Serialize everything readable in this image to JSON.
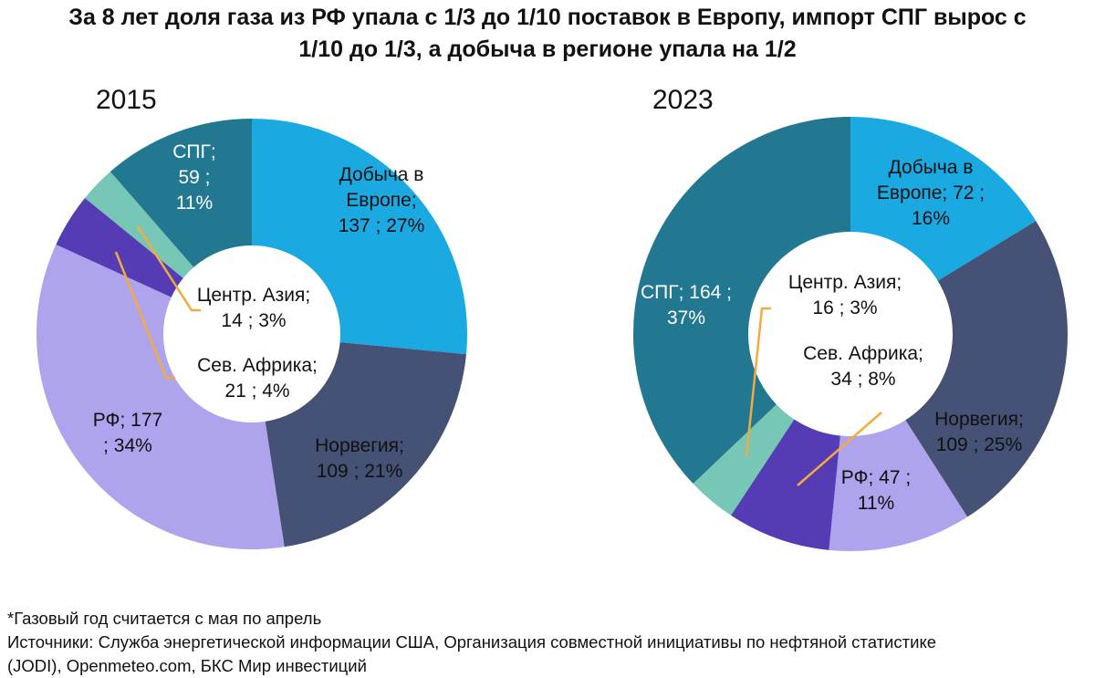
{
  "title": {
    "line1": "За 8 лет доля газа из РФ упала с 1/3 до 1/10 поставок в Европу, импорт СПГ вырос с",
    "line2": "1/10 до 1/3, а добыча в регионе упала на 1/2"
  },
  "colors": {
    "production": "#1ba9e1",
    "norway": "#465275",
    "russia": "#aea3ed",
    "north_africa": "#553cb4",
    "central_asia": "#76c7b5",
    "lng": "#237891",
    "leader": "#f0ac3c"
  },
  "chart_data": [
    {
      "type": "pie",
      "subtitle": "2015",
      "categories": [
        "Добыча в Европе",
        "Норвегия",
        "РФ",
        "Сев. Африка",
        "Центр. Азия",
        "СПГ"
      ],
      "values": [
        137,
        109,
        177,
        21,
        14,
        59
      ],
      "percents": [
        27,
        21,
        34,
        4,
        3,
        11
      ],
      "labels": {
        "production": [
          "Добыча в",
          "Европе;",
          "137 ; 27%"
        ],
        "norway": [
          "Норвегия;",
          "109 ; 21%"
        ],
        "russia": [
          "РФ; 177",
          "; 34%"
        ],
        "north_africa": [
          "Сев. Африка;",
          "21 ; 4%"
        ],
        "central_asia": [
          "Центр. Азия;",
          "14 ; 3%"
        ],
        "lng": [
          "СПГ;",
          "59 ;",
          "11%"
        ]
      }
    },
    {
      "type": "pie",
      "subtitle": "2023",
      "categories": [
        "Добыча в Европе",
        "Норвегия",
        "РФ",
        "Сев. Африка",
        "Центр. Азия",
        "СПГ"
      ],
      "values": [
        72,
        109,
        47,
        34,
        16,
        164
      ],
      "percents": [
        16,
        25,
        11,
        8,
        3,
        37
      ],
      "labels": {
        "production": [
          "Добыча в",
          "Европе; 72 ;",
          "16%"
        ],
        "norway": [
          "Норвегия;",
          "109 ; 25%"
        ],
        "russia": [
          "РФ; 47 ;",
          "11%"
        ],
        "north_africa": [
          "Сев. Африка;",
          "34 ; 8%"
        ],
        "central_asia": [
          "Центр. Азия;",
          "16 ; 3%"
        ],
        "lng": [
          "СПГ; 164 ;",
          "37%"
        ]
      }
    }
  ],
  "footer": {
    "note": "*Газовый год считается с мая по апрель",
    "sources_line1": "Источники: Служба энергетической информации США, Организация совместной инициативы по нефтяной статистике",
    "sources_line2": "(JODI), Openmeteo.com, БКС Мир инвестиций"
  }
}
